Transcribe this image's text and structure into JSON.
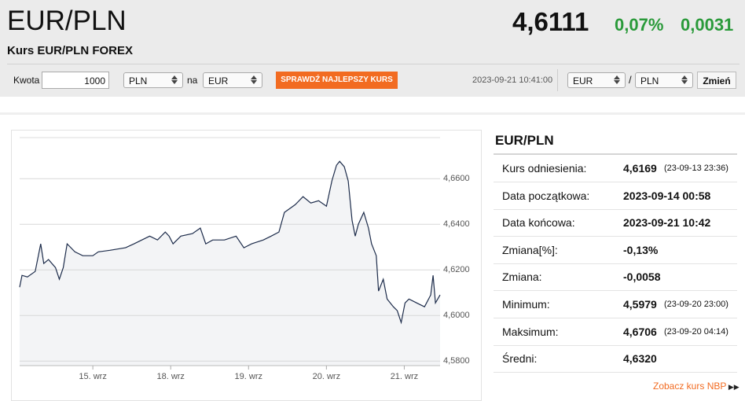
{
  "header": {
    "title": "EUR/PLN",
    "subtitle": "Kurs EUR/PLN FOREX",
    "rate": "4,6111",
    "change_pct": "0,07%",
    "change": "0,0031"
  },
  "form": {
    "amount_label": "Kwota",
    "amount": "1000",
    "from": "PLN",
    "na": "na",
    "to": "EUR",
    "button": "SPRAWDŹ NAJLEPSZY KURS",
    "timestamp": "2023-09-21 10:41:00",
    "pair_from": "EUR",
    "slash": "/",
    "pair_to": "PLN",
    "switch": "Zmień"
  },
  "chart_data": {
    "type": "line",
    "color": "#1c2b4a",
    "area_color": "#f3f4f6",
    "x": [
      0.06,
      0.09,
      0.16,
      0.26,
      0.33,
      0.37,
      0.43,
      0.52,
      0.57,
      0.62,
      0.67,
      0.77,
      0.87,
      1.0,
      1.07,
      1.22,
      1.42,
      1.53,
      1.63,
      1.73,
      1.83,
      1.93,
      1.98,
      2.03,
      2.13,
      2.28,
      2.38,
      2.45,
      2.54,
      2.69,
      2.84,
      2.94,
      3.04,
      3.19,
      3.29,
      3.39,
      3.46,
      3.6,
      3.7,
      3.8,
      3.9,
      4.0,
      4.07,
      4.13,
      4.17,
      4.23,
      4.28,
      4.33,
      4.37,
      4.41,
      4.48,
      4.54,
      4.58,
      4.64,
      4.67,
      4.73,
      4.78,
      4.86,
      4.91,
      4.96,
      5.01,
      5.06,
      5.16,
      5.26,
      5.34,
      5.37,
      5.4,
      5.46
    ],
    "values": [
      4.6124,
      4.6176,
      4.6169,
      4.6193,
      4.6314,
      4.6228,
      4.6245,
      4.621,
      4.6159,
      4.621,
      4.6314,
      4.6279,
      4.6262,
      4.6262,
      4.6279,
      4.6286,
      4.6297,
      4.6314,
      4.6331,
      4.6348,
      4.6331,
      4.6366,
      4.6348,
      4.6314,
      4.6348,
      4.6359,
      4.6383,
      4.6314,
      4.6331,
      4.6331,
      4.6348,
      4.6297,
      4.6314,
      4.6331,
      4.6348,
      4.6366,
      4.6452,
      4.6486,
      4.6521,
      4.6493,
      4.6503,
      4.6479,
      4.659,
      4.6659,
      4.6676,
      4.6652,
      4.659,
      4.6417,
      4.6348,
      4.64,
      4.6452,
      4.6383,
      4.6314,
      4.6262,
      4.6107,
      4.6159,
      4.6072,
      4.6038,
      4.6021,
      4.5969,
      4.6055,
      4.6072,
      4.6055,
      4.6038,
      4.609,
      4.6176,
      4.6055,
      4.609
    ],
    "xlim": [
      0.06,
      5.46
    ],
    "xticks": [
      {
        "value": 1,
        "label": "15. wrz"
      },
      {
        "value": 2,
        "label": "18. wrz"
      },
      {
        "value": 3,
        "label": "19. wrz"
      },
      {
        "value": 4,
        "label": "20. wrz"
      },
      {
        "value": 5,
        "label": "21. wrz"
      }
    ],
    "ylim": [
      4.578,
      4.678
    ],
    "yticks": [
      {
        "value": 4.58,
        "label": "4,5800"
      },
      {
        "value": 4.6,
        "label": "4,6000"
      },
      {
        "value": 4.62,
        "label": "4,6200"
      },
      {
        "value": 4.64,
        "label": "4,6400"
      },
      {
        "value": 4.66,
        "label": "4,6600"
      }
    ],
    "grid": true
  },
  "stats": {
    "title": "EUR/PLN",
    "rows": [
      {
        "label": "Kurs odniesienia:",
        "value": "4,6169",
        "note": "(23-09-13 23:36)"
      },
      {
        "label": "Data początkowa:",
        "value": "2023-09-14 00:58"
      },
      {
        "label": "Data końcowa:",
        "value": "2023-09-21 10:42"
      },
      {
        "label": "Zmiana[%]:",
        "value": "-0,13%"
      },
      {
        "label": "Zmiana:",
        "value": "-0,0058"
      },
      {
        "label": "Minimum:",
        "value": "4,5979",
        "note": "(23-09-20 23:00)"
      },
      {
        "label": "Maksimum:",
        "value": "4,6706",
        "note": "(23-09-20 04:14)"
      },
      {
        "label": "Średni:",
        "value": "4,6320"
      }
    ],
    "link": "Zobacz kurs NBP"
  }
}
